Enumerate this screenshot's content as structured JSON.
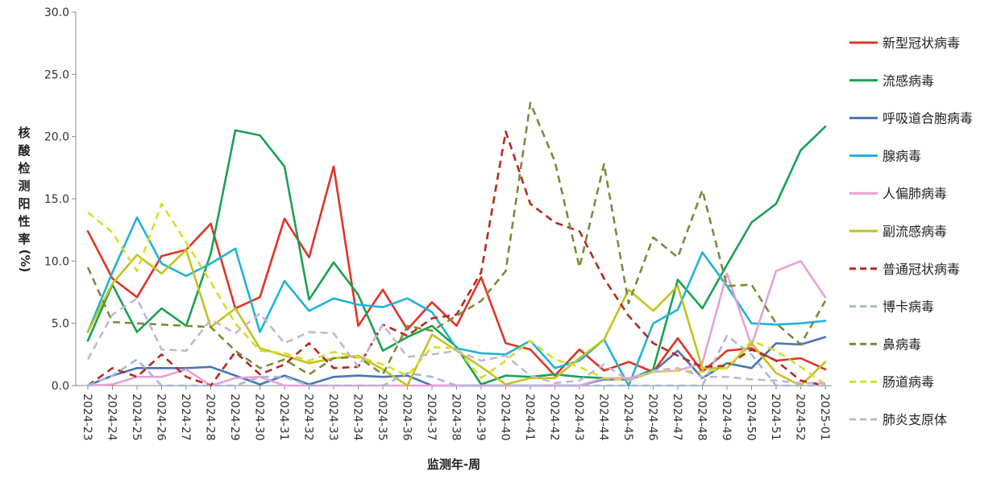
{
  "chart_data": {
    "type": "line",
    "title": "",
    "xlabel": "监测年-周",
    "ylabel_chars": [
      "核",
      "酸",
      "检",
      "测",
      "阳",
      "性",
      "率",
      "(%)"
    ],
    "ylim": [
      0,
      30
    ],
    "yticks": [
      "0.0",
      "5.0",
      "10.0",
      "15.0",
      "20.0",
      "25.0",
      "30.0"
    ],
    "ytick_values": [
      0,
      5,
      10,
      15,
      20,
      25,
      30
    ],
    "grid": false,
    "legend_position": "right",
    "categories": [
      "2024-23",
      "2024-24",
      "2024-25",
      "2024-26",
      "2024-27",
      "2024-28",
      "2024-29",
      "2024-30",
      "2024-31",
      "2024-32",
      "2024-33",
      "2024-34",
      "2024-35",
      "2024-36",
      "2024-37",
      "2024-38",
      "2024-39",
      "2024-40",
      "2024-41",
      "2024-42",
      "2024-43",
      "2024-44",
      "2024-45",
      "2024-46",
      "2024-47",
      "2024-48",
      "2024-49",
      "2024-50",
      "2024-51",
      "2024-52",
      "2025-01"
    ],
    "series": [
      {
        "name": "新型冠状病毒",
        "color": "#e03428",
        "dash": false,
        "values": [
          12.4,
          8.6,
          7.1,
          10.4,
          10.9,
          13.0,
          6.2,
          7.1,
          13.4,
          10.3,
          17.6,
          4.8,
          7.7,
          4.5,
          6.7,
          4.8,
          8.7,
          3.4,
          2.9,
          0.8,
          2.9,
          1.2,
          1.9,
          1.1,
          3.8,
          1.1,
          2.8,
          3.0,
          2.0,
          2.2,
          1.3
        ]
      },
      {
        "name": "流感病毒",
        "color": "#1aa152",
        "dash": false,
        "values": [
          3.6,
          8.1,
          4.3,
          6.2,
          4.8,
          10.6,
          20.5,
          20.1,
          17.6,
          6.9,
          9.9,
          7.3,
          2.8,
          3.9,
          4.8,
          3.1,
          0.1,
          0.8,
          0.7,
          0.9,
          0.7,
          0.6,
          0.5,
          1.3,
          8.5,
          6.2,
          9.7,
          13.1,
          14.6,
          18.9,
          20.8
        ]
      },
      {
        "name": "呼吸道合胞病毒",
        "color": "#4a74b6",
        "dash": false,
        "values": [
          0.0,
          0.8,
          1.4,
          1.4,
          1.4,
          1.5,
          0.8,
          0.1,
          0.8,
          0.1,
          0.7,
          0.8,
          0.7,
          0.8,
          0.0,
          0.0,
          0.0,
          0.0,
          0.0,
          0.0,
          0.0,
          0.5,
          0.5,
          1.1,
          2.8,
          0.6,
          1.8,
          1.4,
          3.4,
          3.3,
          3.9
        ]
      },
      {
        "name": "腺病毒",
        "color": "#1fb3d6",
        "dash": false,
        "values": [
          4.3,
          9.1,
          13.5,
          9.8,
          8.8,
          9.8,
          11.0,
          4.3,
          8.4,
          6.0,
          7.0,
          6.5,
          6.3,
          7.0,
          5.9,
          3.0,
          2.6,
          2.5,
          3.6,
          1.4,
          2.0,
          3.7,
          0.0,
          5.0,
          6.1,
          10.7,
          8.0,
          5.0,
          4.9,
          5.0,
          5.2
        ]
      },
      {
        "name": "人偏肺病毒",
        "color": "#e6a1d6",
        "dash": false,
        "values": [
          0.0,
          0.1,
          0.7,
          0.7,
          1.3,
          0.0,
          0.6,
          0.7,
          0.0,
          0.0,
          0.0,
          0.0,
          0.0,
          0.0,
          0.0,
          0.0,
          0.0,
          0.0,
          0.0,
          0.0,
          0.0,
          0.6,
          0.6,
          1.1,
          1.2,
          1.8,
          9.0,
          3.2,
          9.2,
          10.0,
          7.1
        ]
      },
      {
        "name": "副流感病毒",
        "color": "#c4c21f",
        "dash": false,
        "values": [
          4.3,
          8.2,
          10.5,
          9.0,
          10.9,
          4.7,
          6.2,
          3.0,
          2.4,
          1.8,
          2.2,
          2.4,
          1.3,
          0.0,
          4.1,
          2.8,
          1.5,
          0.1,
          0.6,
          0.6,
          2.2,
          3.7,
          7.7,
          6.0,
          8.0,
          1.4,
          1.4,
          3.4,
          1.0,
          0.0,
          1.9
        ]
      },
      {
        "name": "普通冠状病毒",
        "color": "#b32b22",
        "dash": true,
        "values": [
          0.0,
          1.4,
          0.7,
          2.5,
          0.7,
          0.0,
          2.7,
          0.9,
          1.7,
          3.4,
          1.4,
          1.5,
          4.9,
          4.0,
          5.4,
          5.7,
          9.1,
          20.4,
          14.6,
          13.1,
          12.4,
          8.6,
          5.6,
          3.4,
          2.4,
          1.5,
          1.6,
          2.9,
          2.0,
          0.4,
          0.0
        ]
      },
      {
        "name": "博卡病毒",
        "color": "#a9b7d6",
        "dash": true,
        "values": [
          0.0,
          0.8,
          2.1,
          0.0,
          0.0,
          0.0,
          0.0,
          0.7,
          0.7,
          0.0,
          0.0,
          0.0,
          0.0,
          1.0,
          0.7,
          0.0,
          0.0,
          0.0,
          0.0,
          0.0,
          0.0,
          0.0,
          0.0,
          0.0,
          0.0,
          0.0,
          4.0,
          2.5,
          0.0,
          0.0,
          0.0
        ]
      },
      {
        "name": "鼻病毒",
        "color": "#7d8a3a",
        "dash": true,
        "values": [
          9.5,
          5.1,
          5.0,
          4.9,
          4.8,
          4.7,
          2.8,
          1.4,
          2.1,
          0.9,
          2.2,
          2.3,
          0.9,
          4.8,
          4.4,
          5.6,
          6.8,
          9.2,
          22.7,
          18.0,
          9.5,
          17.8,
          6.6,
          11.9,
          10.3,
          15.7,
          8.0,
          8.1,
          5.0,
          3.3,
          6.8
        ]
      },
      {
        "name": "肠道病毒",
        "color": "#d7dd2a",
        "dash": true,
        "values": [
          13.9,
          12.3,
          9.2,
          14.6,
          11.5,
          8.3,
          5.0,
          2.8,
          2.6,
          2.0,
          2.7,
          2.3,
          1.7,
          0.8,
          3.1,
          3.0,
          0.6,
          2.0,
          3.6,
          2.1,
          1.5,
          0.6,
          0.4,
          1.1,
          1.2,
          1.1,
          1.4,
          3.6,
          2.8,
          1.5,
          0.1
        ]
      },
      {
        "name": "肺炎支原体",
        "color": "#c4b5d3",
        "dash": true,
        "values": [
          2.1,
          5.7,
          7.0,
          2.9,
          2.8,
          5.3,
          4.2,
          5.8,
          3.4,
          4.3,
          4.2,
          1.5,
          4.9,
          2.3,
          2.5,
          2.8,
          2.0,
          2.4,
          0.8,
          0.2,
          0.4,
          1.7,
          0.4,
          1.2,
          1.4,
          0.7,
          0.7,
          0.5,
          0.4,
          0.2,
          0.2
        ]
      }
    ]
  }
}
